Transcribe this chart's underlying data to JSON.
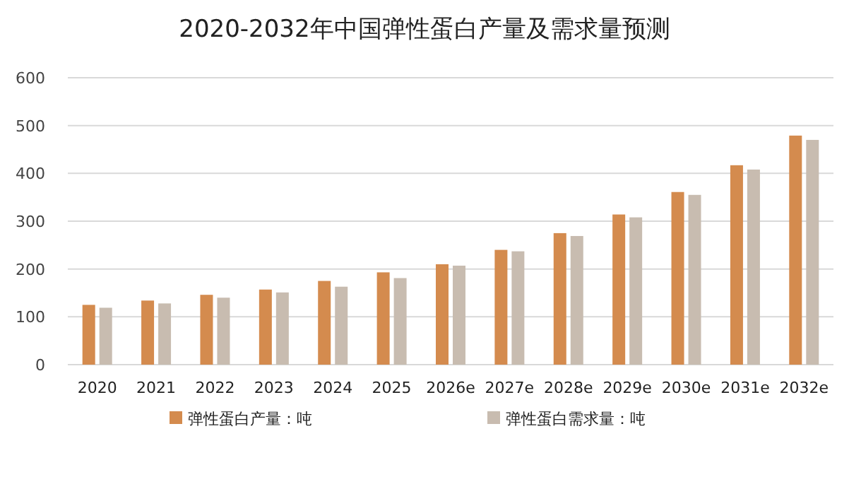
{
  "chart_data": {
    "type": "bar",
    "title": "2020-2032年中国弹性蛋白产量及需求量预测",
    "categories": [
      "2020",
      "2021",
      "2022",
      "2023",
      "2024",
      "2025",
      "2026e",
      "2027e",
      "2028e",
      "2029e",
      "2030e",
      "2031e",
      "2032e"
    ],
    "series": [
      {
        "name": "弹性蛋白产量：吨",
        "color": "#d48b4e",
        "values": [
          125,
          134,
          146,
          157,
          175,
          193,
          210,
          240,
          275,
          314,
          361,
          417,
          479
        ]
      },
      {
        "name": "弹性蛋白需求量：吨",
        "color": "#c8bcb0",
        "values": [
          119,
          128,
          140,
          151,
          163,
          181,
          207,
          237,
          269,
          308,
          355,
          408,
          470
        ]
      }
    ],
    "ylim": [
      0,
      600
    ],
    "yticks": [
      0,
      100,
      200,
      300,
      400,
      500,
      600
    ],
    "grid": "y",
    "legend": "bottom"
  }
}
